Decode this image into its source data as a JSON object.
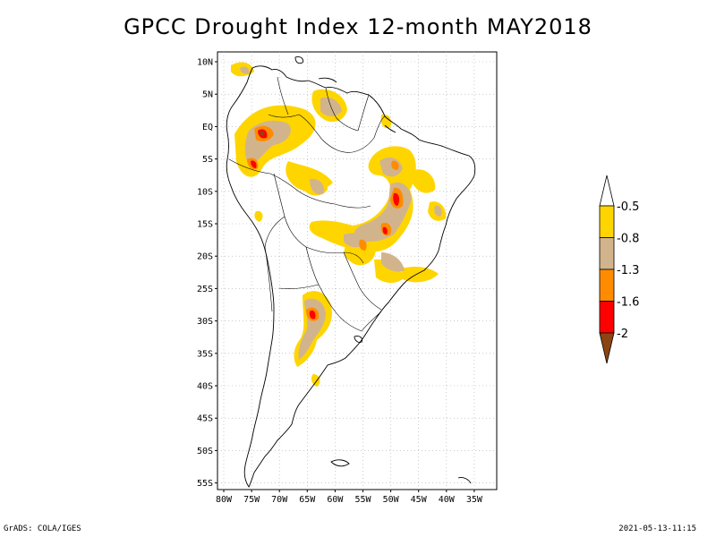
{
  "title": "GPCC Drought Index 12-month MAY2018",
  "lat_labels": [
    "10N",
    "5N",
    "EQ",
    "5S",
    "10S",
    "15S",
    "20S",
    "25S",
    "30S",
    "35S",
    "40S",
    "45S",
    "50S",
    "55S"
  ],
  "lon_labels": [
    "80W",
    "75W",
    "70W",
    "65W",
    "60W",
    "55W",
    "50W",
    "45W",
    "40W",
    "35W"
  ],
  "legend": {
    "colors": [
      "#ffffff",
      "#ffd500",
      "#d2b48c",
      "#ff8c00",
      "#ff0000",
      "#8b4513"
    ],
    "labels": [
      "-0.5",
      "-0.8",
      "-1.3",
      "-1.6",
      "-2"
    ]
  },
  "footer_left": "GrADS: COLA/IGES",
  "footer_right": "2021-05-13-11:15"
}
